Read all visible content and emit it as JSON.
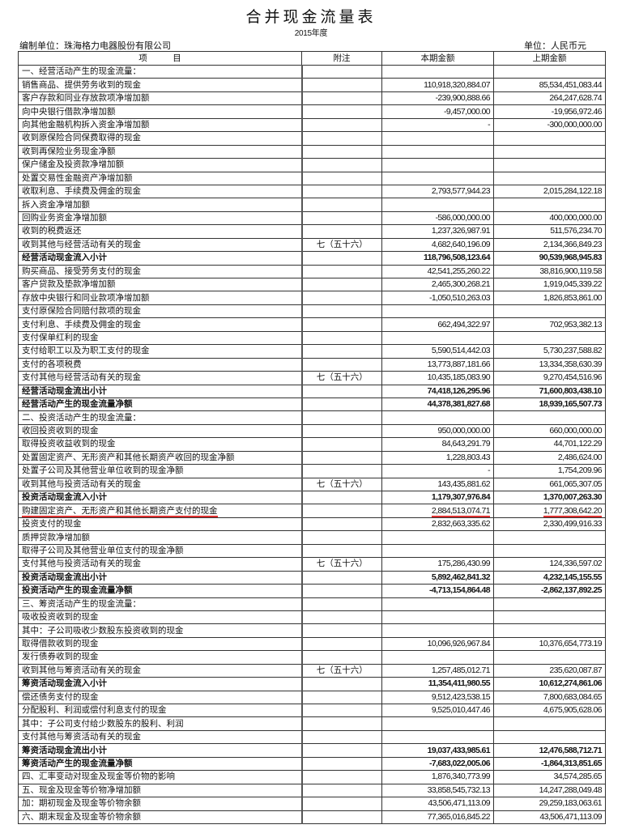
{
  "title": "合并现金流量表",
  "subtitle": "2015年度",
  "company": "编制单位：珠海格力电器股份有限公司",
  "unit": "单位：人民币元",
  "headers": [
    "项　　　目",
    "附注",
    "本期金额",
    "上期金额"
  ],
  "highlight_color": "#e03030",
  "rows": [
    [
      "一、经营活动产生的现金流量：",
      "",
      "",
      "",
      false
    ],
    [
      "销售商品、提供劳务收到的现金",
      "",
      "110,918,320,884.07",
      "85,534,451,083.44",
      false
    ],
    [
      "客户存款和同业存放款项净增加额",
      "",
      "-239,900,888.66",
      "264,247,628.74",
      false
    ],
    [
      "向中央银行借款净增加额",
      "",
      "-9,457,000.00",
      "-19,956,972.46",
      false
    ],
    [
      "向其他金融机构拆入资金净增加额",
      "",
      "-",
      "-300,000,000.00",
      false
    ],
    [
      "收到原保险合同保费取得的现金",
      "",
      "",
      "",
      false
    ],
    [
      "收到再保险业务现金净额",
      "",
      "",
      "",
      false
    ],
    [
      "保户储金及投资款净增加额",
      "",
      "",
      "",
      false
    ],
    [
      "处置交易性金融资产净增加额",
      "",
      "",
      "",
      false
    ],
    [
      "收取利息、手续费及佣金的现金",
      "",
      "2,793,577,944.23",
      "2,015,284,122.18",
      false
    ],
    [
      "拆入资金净增加额",
      "",
      "",
      "",
      false
    ],
    [
      "回购业务资金净增加额",
      "",
      "-586,000,000.00",
      "400,000,000.00",
      false
    ],
    [
      "收到的税费返还",
      "",
      "1,237,326,987.91",
      "511,576,234.70",
      false
    ],
    [
      "收到其他与经营活动有关的现金",
      "七（五十六）",
      "4,682,640,196.09",
      "2,134,366,849.23",
      false
    ],
    [
      "经营活动现金流入小计",
      "",
      "118,796,508,123.64",
      "90,539,968,945.83",
      true
    ],
    [
      "购买商品、接受劳务支付的现金",
      "",
      "42,541,255,260.22",
      "38,816,900,119.58",
      false
    ],
    [
      "客户贷款及垫款净增加额",
      "",
      "2,465,300,268.21",
      "1,919,045,339.22",
      false
    ],
    [
      "存放中央银行和同业款项净增加额",
      "",
      "-1,050,510,263.03",
      "1,826,853,861.00",
      false
    ],
    [
      "支付原保险合同赔付款项的现金",
      "",
      "",
      "",
      false
    ],
    [
      "支付利息、手续费及佣金的现金",
      "",
      "662,494,322.97",
      "702,953,382.13",
      false
    ],
    [
      "支付保单红利的现金",
      "",
      "",
      "",
      false
    ],
    [
      "支付给职工以及为职工支付的现金",
      "",
      "5,590,514,442.03",
      "5,730,237,588.82",
      false
    ],
    [
      "支付的各项税费",
      "",
      "13,773,887,181.66",
      "13,334,358,630.39",
      false
    ],
    [
      "支付其他与经营活动有关的现金",
      "七（五十六）",
      "10,435,185,083.90",
      "9,270,454,516.96",
      false
    ],
    [
      "经营活动现金流出小计",
      "",
      "74,418,126,295.96",
      "71,600,803,438.10",
      true
    ],
    [
      "经营活动产生的现金流量净额",
      "",
      "44,378,381,827.68",
      "18,939,165,507.73",
      true
    ],
    [
      "二、投资活动产生的现金流量：",
      "",
      "",
      "",
      false
    ],
    [
      "收回投资收到的现金",
      "",
      "950,000,000.00",
      "660,000,000.00",
      false
    ],
    [
      "取得投资收益收到的现金",
      "",
      "84,643,291.79",
      "44,701,122.29",
      false
    ],
    [
      "处置固定资产、无形资产和其他长期资产收回的现金净额",
      "",
      "1,228,803.43",
      "2,486,624.00",
      false
    ],
    [
      "处置子公司及其他营业单位收到的现金净额",
      "",
      "-",
      "1,754,209.96",
      false
    ],
    [
      "收到其他与投资活动有关的现金",
      "七（五十六）",
      "143,435,881.62",
      "661,065,307.05",
      false
    ],
    [
      "投资活动现金流入小计",
      "",
      "1,179,307,976.84",
      "1,370,007,263.30",
      true
    ],
    [
      "购建固定资产、无形资产和其他长期资产支付的现金",
      "",
      "2,884,513,074.71",
      "1,777,308,642.20",
      false
    ],
    [
      "投资支付的现金",
      "",
      "2,832,663,335.62",
      "2,330,499,916.33",
      false
    ],
    [
      "质押贷款净增加额",
      "",
      "",
      "",
      false
    ],
    [
      "取得子公司及其他营业单位支付的现金净额",
      "",
      "",
      "",
      false
    ],
    [
      "支付其他与投资活动有关的现金",
      "七（五十六）",
      "175,286,430.99",
      "124,336,597.02",
      false
    ],
    [
      "投资活动现金流出小计",
      "",
      "5,892,462,841.32",
      "4,232,145,155.55",
      true
    ],
    [
      "投资活动产生的现金流量净额",
      "",
      "-4,713,154,864.48",
      "-2,862,137,892.25",
      true
    ],
    [
      "三、筹资活动产生的现金流量：",
      "",
      "",
      "",
      false
    ],
    [
      "吸收投资收到的现金",
      "",
      "",
      "",
      false
    ],
    [
      "其中：子公司吸收少数股东投资收到的现金",
      "",
      "",
      "",
      false
    ],
    [
      "取得借款收到的现金",
      "",
      "10,096,926,967.84",
      "10,376,654,773.19",
      false
    ],
    [
      "发行债券收到的现金",
      "",
      "",
      "",
      false
    ],
    [
      "收到其他与筹资活动有关的现金",
      "七（五十六）",
      "1,257,485,012.71",
      "235,620,087.87",
      false
    ],
    [
      "筹资活动现金流入小计",
      "",
      "11,354,411,980.55",
      "10,612,274,861.06",
      true
    ],
    [
      "偿还债务支付的现金",
      "",
      "9,512,423,538.15",
      "7,800,683,084.65",
      false
    ],
    [
      "分配股利、利润或偿付利息支付的现金",
      "",
      "9,525,010,447.46",
      "4,675,905,628.06",
      false
    ],
    [
      "其中：子公司支付给少数股东的股利、利润",
      "",
      "",
      "",
      false
    ],
    [
      "支付其他与筹资活动有关的现金",
      "",
      "",
      "",
      false
    ],
    [
      "筹资活动现金流出小计",
      "",
      "19,037,433,985.61",
      "12,476,588,712.71",
      true
    ],
    [
      "筹资活动产生的现金流量净额",
      "",
      "-7,683,022,005.06",
      "-1,864,313,851.65",
      true
    ],
    [
      "四、汇率变动对现金及现金等价物的影响",
      "",
      "1,876,340,773.99",
      "34,574,285.65",
      false
    ],
    [
      "五、现金及现金等价物净增加额",
      "",
      "33,858,545,732.13",
      "14,247,288,049.48",
      false
    ],
    [
      "加：期初现金及现金等价物余额",
      "",
      "43,506,471,113.09",
      "29,259,183,063.61",
      false
    ],
    [
      "六、期末现金及现金等价物余额",
      "",
      "77,365,016,845.22",
      "43,506,471,113.09",
      false
    ]
  ],
  "underlined_row": 33
}
